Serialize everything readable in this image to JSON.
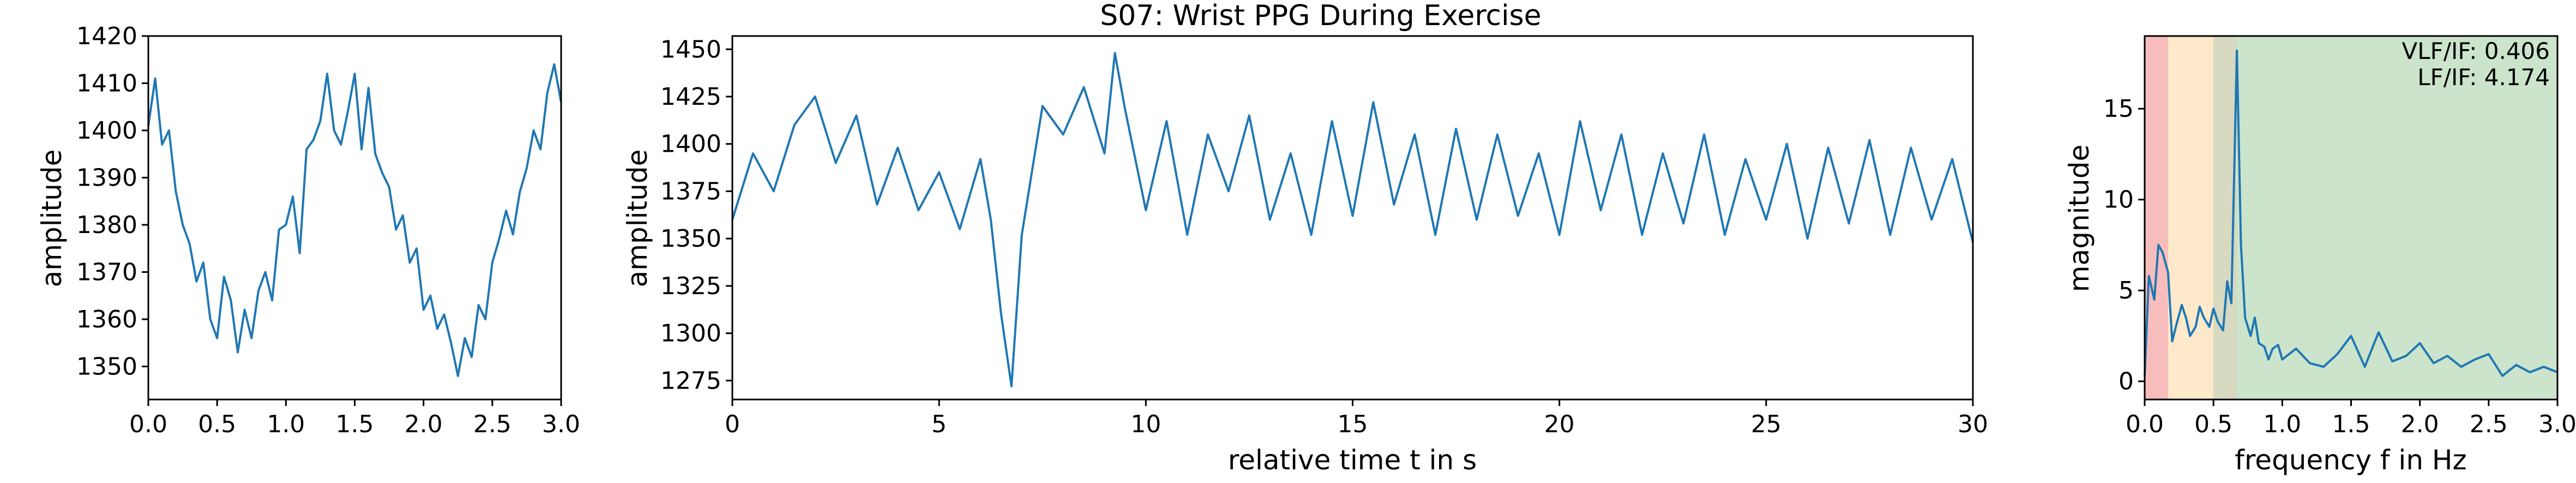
{
  "colors": {
    "line": "#1f77b4",
    "band_vlf": "#f4a6a6",
    "band_lf": "#fde2b8",
    "band_overlap": "#c9ccab",
    "band_hf": "#b9dbb9"
  },
  "chart_data": [
    {
      "type": "line",
      "title": "",
      "xlabel": "",
      "ylabel": "amplitude",
      "xlim": [
        0,
        3
      ],
      "ylim": [
        1343,
        1420
      ],
      "xticks": [
        "0.0",
        "0.5",
        "1.0",
        "1.5",
        "2.0",
        "2.5",
        "3.0"
      ],
      "yticks": [
        "1350",
        "1360",
        "1370",
        "1380",
        "1390",
        "1400",
        "1410",
        "1420"
      ],
      "series": [
        {
          "x": [
            0,
            0.05,
            0.1,
            0.15,
            0.2,
            0.25,
            0.3,
            0.35,
            0.4,
            0.45,
            0.5,
            0.55,
            0.6,
            0.65,
            0.7,
            0.75,
            0.8,
            0.85,
            0.9,
            0.95,
            1.0,
            1.05,
            1.1,
            1.15,
            1.2,
            1.25,
            1.3,
            1.35,
            1.4,
            1.45,
            1.5,
            1.55,
            1.6,
            1.65,
            1.7,
            1.75,
            1.8,
            1.85,
            1.9,
            1.95,
            2.0,
            2.05,
            2.1,
            2.15,
            2.2,
            2.25,
            2.3,
            2.35,
            2.4,
            2.45,
            2.5,
            2.55,
            2.6,
            2.65,
            2.7,
            2.75,
            2.8,
            2.85,
            2.9,
            2.95,
            3.0
          ],
          "values": [
            1401,
            1411,
            1397,
            1400,
            1387,
            1380,
            1376,
            1368,
            1372,
            1360,
            1356,
            1369,
            1364,
            1353,
            1362,
            1356,
            1366,
            1370,
            1364,
            1379,
            1380,
            1386,
            1374,
            1396,
            1398,
            1402,
            1412,
            1400,
            1397,
            1404,
            1412,
            1396,
            1409,
            1395,
            1391,
            1388,
            1379,
            1382,
            1372,
            1375,
            1362,
            1365,
            1358,
            1361,
            1355,
            1348,
            1356,
            1352,
            1363,
            1360,
            1372,
            1377,
            1383,
            1378,
            1387,
            1392,
            1400,
            1396,
            1408,
            1414,
            1406
          ]
        }
      ]
    },
    {
      "type": "line",
      "title": "S07: Wrist PPG During Exercise",
      "xlabel": "relative time t in s",
      "ylabel": "amplitude",
      "xlim": [
        0,
        30
      ],
      "ylim": [
        1265,
        1457
      ],
      "xticks": [
        "0",
        "5",
        "10",
        "15",
        "20",
        "25",
        "30"
      ],
      "yticks": [
        "1275",
        "1300",
        "1325",
        "1350",
        "1375",
        "1400",
        "1425",
        "1450"
      ],
      "series": [
        {
          "x": [
            0,
            0.5,
            1,
            1.5,
            2,
            2.5,
            3,
            3.5,
            4,
            4.5,
            5,
            5.5,
            6,
            6.25,
            6.5,
            6.75,
            7,
            7.5,
            8,
            8.5,
            9,
            9.25,
            9.5,
            10,
            10.5,
            11,
            11.5,
            12,
            12.5,
            13,
            13.5,
            14,
            14.5,
            15,
            15.5,
            16,
            16.5,
            17,
            17.5,
            18,
            18.5,
            19,
            19.5,
            20,
            20.5,
            21,
            21.5,
            22,
            22.5,
            23,
            23.5,
            24,
            24.5,
            25,
            25.5,
            26,
            26.5,
            27,
            27.5,
            28,
            28.5,
            29,
            29.5,
            30
          ],
          "values": [
            1360,
            1395,
            1375,
            1410,
            1425,
            1390,
            1415,
            1368,
            1398,
            1365,
            1385,
            1355,
            1392,
            1360,
            1310,
            1272,
            1352,
            1420,
            1405,
            1430,
            1395,
            1448,
            1418,
            1365,
            1412,
            1352,
            1405,
            1375,
            1415,
            1360,
            1395,
            1352,
            1412,
            1362,
            1422,
            1368,
            1405,
            1352,
            1408,
            1360,
            1405,
            1362,
            1395,
            1352,
            1412,
            1365,
            1405,
            1352,
            1395,
            1358,
            1405,
            1352,
            1392,
            1360,
            1400,
            1350,
            1398,
            1358,
            1402,
            1352,
            1398,
            1360,
            1392,
            1348
          ]
        }
      ]
    },
    {
      "type": "line",
      "title": "",
      "xlabel": "frequency f in Hz",
      "ylabel": "magnitude",
      "xlim": [
        0,
        3
      ],
      "ylim": [
        -1,
        19
      ],
      "xticks": [
        "0.0",
        "0.5",
        "1.0",
        "1.5",
        "2.0",
        "2.5",
        "3.0"
      ],
      "yticks": [
        "0",
        "5",
        "10",
        "15"
      ],
      "bands": [
        {
          "from": 0,
          "to": 0.17,
          "color_key": "band_vlf"
        },
        {
          "from": 0.17,
          "to": 0.5,
          "color_key": "band_lf"
        },
        {
          "from": 0.5,
          "to": 0.67,
          "color_key": "band_overlap"
        },
        {
          "from": 0.67,
          "to": 3.0,
          "color_key": "band_hf"
        }
      ],
      "annotations": [
        "VLF/IF: 0.406",
        "LF/IF: 4.174"
      ],
      "series": [
        {
          "x": [
            0,
            0.03,
            0.07,
            0.1,
            0.13,
            0.17,
            0.2,
            0.23,
            0.27,
            0.3,
            0.33,
            0.37,
            0.4,
            0.43,
            0.47,
            0.5,
            0.53,
            0.57,
            0.6,
            0.63,
            0.67,
            0.7,
            0.73,
            0.77,
            0.8,
            0.83,
            0.87,
            0.9,
            0.93,
            0.97,
            1.0,
            1.1,
            1.2,
            1.3,
            1.4,
            1.5,
            1.6,
            1.7,
            1.8,
            1.9,
            2.0,
            2.1,
            2.2,
            2.3,
            2.4,
            2.5,
            2.6,
            2.7,
            2.8,
            2.9,
            3.0
          ],
          "values": [
            0.3,
            5.8,
            4.5,
            7.5,
            7.1,
            6.0,
            2.2,
            3.1,
            4.2,
            3.5,
            2.5,
            3.0,
            4.1,
            3.5,
            3.0,
            4.0,
            3.3,
            2.8,
            5.5,
            4.3,
            18.2,
            7.5,
            3.5,
            2.5,
            3.5,
            2.1,
            1.9,
            1.2,
            1.8,
            2.0,
            1.2,
            1.8,
            1.0,
            0.8,
            1.5,
            2.5,
            0.8,
            2.7,
            1.1,
            1.4,
            2.1,
            1.0,
            1.4,
            0.8,
            1.2,
            1.5,
            0.3,
            0.9,
            0.5,
            0.8,
            0.5
          ]
        }
      ]
    }
  ]
}
